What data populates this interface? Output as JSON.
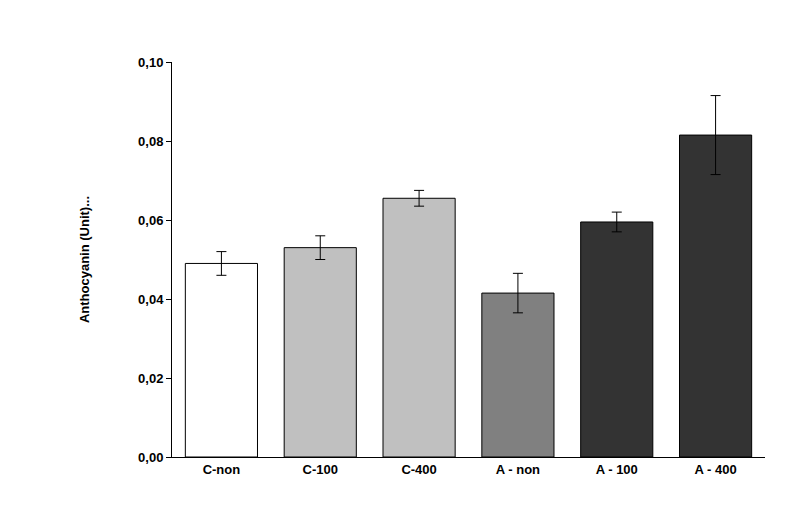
{
  "chart_data": {
    "type": "bar",
    "y_label": "Anthocyanin (Unit)...",
    "categories": [
      "C-non",
      "C-100",
      "C-400",
      "A - non",
      "A - 100",
      "A - 400"
    ],
    "values": [
      0.049,
      0.053,
      0.0655,
      0.0415,
      0.0595,
      0.0815
    ],
    "errors": [
      0.003,
      0.003,
      0.002,
      0.005,
      0.0025,
      0.01
    ],
    "colors": [
      "#ffffff",
      "#c0c0c0",
      "#c0c0c0",
      "#808080",
      "#333333",
      "#333333"
    ],
    "ylim": [
      0,
      0.1
    ],
    "yticks": [
      {
        "value": 0,
        "label": "0,00"
      },
      {
        "value": 0.02,
        "label": "0,02"
      },
      {
        "value": 0.04,
        "label": "0,04"
      },
      {
        "value": 0.06,
        "label": "0,06"
      },
      {
        "value": 0.08,
        "label": "0,08"
      },
      {
        "value": 0.1,
        "label": "0,10"
      }
    ],
    "grid": false
  }
}
